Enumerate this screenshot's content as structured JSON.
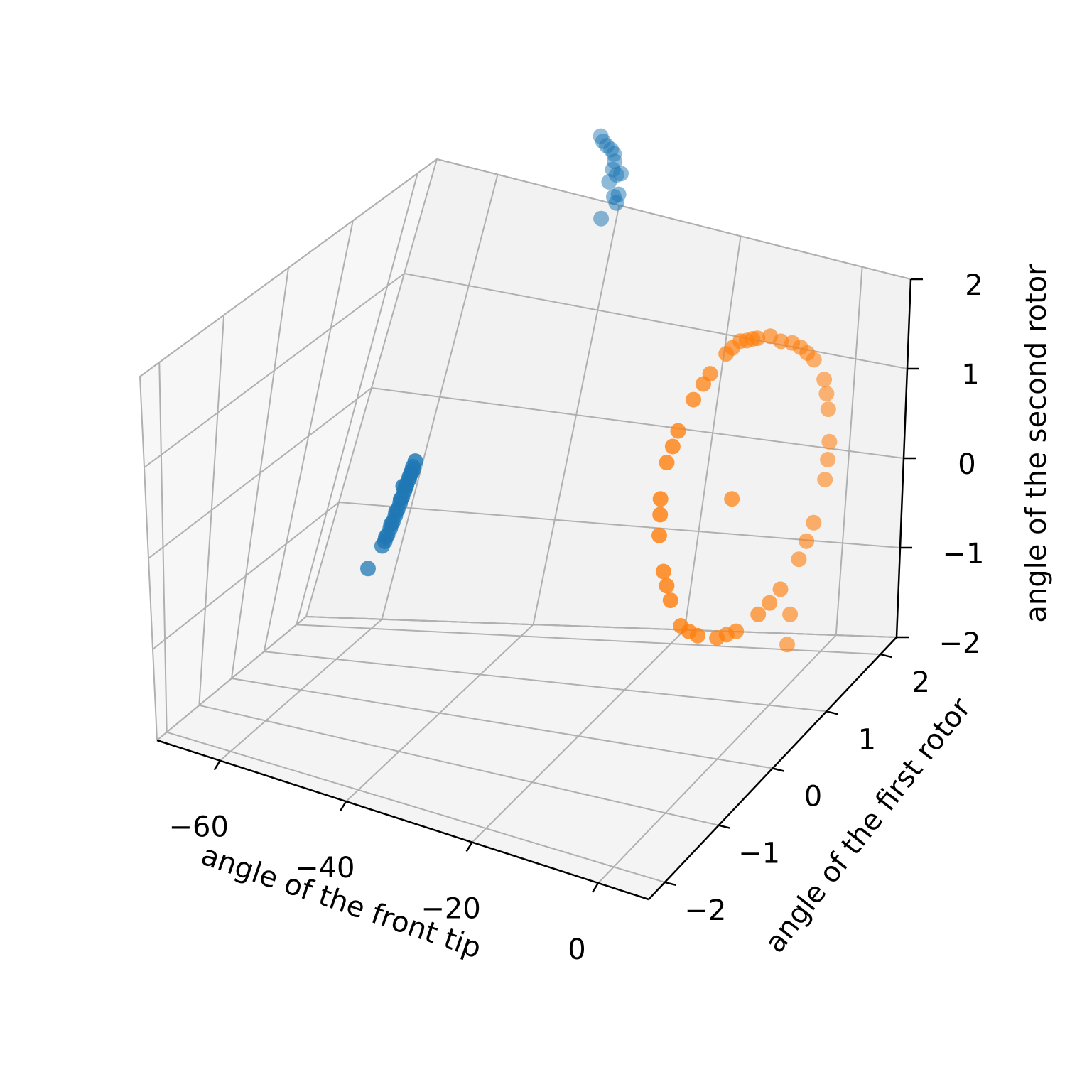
{
  "chart_data": {
    "type": "scatter",
    "projection": "3d",
    "grid": true,
    "legend": "none",
    "x_axis": {
      "label": "angle of the front tip",
      "ticks": [
        -60,
        -40,
        -20,
        0
      ],
      "tick_labels": [
        "−60",
        "−40",
        "−20",
        "0"
      ],
      "range": [
        -70,
        8
      ]
    },
    "y_axis": {
      "label": "angle of the first rotor",
      "ticks": [
        -2,
        -1,
        0,
        1,
        2
      ],
      "tick_labels": [
        "−2",
        "−1",
        "0",
        "1",
        "2"
      ],
      "range": [
        -2.3,
        2.3
      ]
    },
    "z_axis": {
      "label": "angle of the second rotor",
      "ticks": [
        -2,
        -1,
        0,
        1,
        2
      ],
      "tick_labels": [
        "−2",
        "−1",
        "0",
        "1",
        "2"
      ],
      "range": [
        -2,
        2
      ]
    },
    "series": [
      {
        "color": "#1f77b4",
        "points": [
          [
            -47.0,
            2.5,
            2.45
          ],
          [
            -46.0,
            2.45,
            2.44
          ],
          [
            -45.0,
            2.42,
            2.43
          ],
          [
            -44.0,
            2.4,
            2.42
          ],
          [
            -43.2,
            2.38,
            2.4
          ],
          [
            -42.5,
            2.34,
            2.36
          ],
          [
            -42.0,
            2.28,
            2.32
          ],
          [
            -41.0,
            2.25,
            2.3
          ],
          [
            -40.5,
            2.27,
            2.31
          ],
          [
            -41.5,
            2.2,
            2.25
          ],
          [
            -39.0,
            2.05,
            2.22
          ],
          [
            -38.0,
            2.0,
            2.2
          ],
          [
            -38.5,
            2.07,
            2.24
          ],
          [
            -39.5,
            1.95,
            2.05
          ],
          [
            -38.0,
            -1.1,
            1.15
          ],
          [
            -38.8,
            -1.05,
            1.05
          ],
          [
            -39.5,
            -1.0,
            0.95
          ],
          [
            -40.2,
            -0.95,
            0.84
          ],
          [
            -41.0,
            -0.9,
            0.74
          ],
          [
            -41.7,
            -0.85,
            0.64
          ],
          [
            -42.4,
            -0.8,
            0.54
          ],
          [
            -43.1,
            -0.75,
            0.44
          ],
          [
            -43.8,
            -0.7,
            0.34
          ],
          [
            -44.5,
            -0.65,
            0.24
          ],
          [
            -45.2,
            -0.6,
            0.14
          ],
          [
            -45.9,
            -0.55,
            0.04
          ],
          [
            -46.6,
            -0.5,
            -0.06
          ],
          [
            -47.3,
            -0.45,
            -0.16
          ],
          [
            -39.0,
            -1.02,
            1.0
          ],
          [
            -40.0,
            -0.97,
            0.88
          ],
          [
            -41.3,
            -0.88,
            0.7
          ],
          [
            -42.8,
            -0.78,
            0.5
          ],
          [
            -44.2,
            -0.68,
            0.3
          ],
          [
            -45.6,
            -0.58,
            0.1
          ],
          [
            -47.0,
            -0.48,
            -0.1
          ],
          [
            -48.0,
            -0.4,
            -0.24
          ],
          [
            -39.8,
            -1.1,
            0.85
          ],
          [
            -42.0,
            -0.7,
            0.75
          ],
          [
            -50.5,
            -0.3,
            -0.55
          ]
        ]
      },
      {
        "color": "#ff7f0e",
        "points": [
          [
            -3.0,
            0.6,
            2.15
          ],
          [
            -2.6,
            0.33,
            2.18
          ],
          [
            -2.2,
            0.03,
            2.15
          ],
          [
            -1.8,
            -0.28,
            2.06
          ],
          [
            -1.4,
            -0.57,
            1.9
          ],
          [
            -1.0,
            -0.8,
            1.7
          ],
          [
            -0.6,
            -0.95,
            1.4
          ],
          [
            -0.2,
            -1.02,
            1.05
          ],
          [
            0.2,
            -1.0,
            0.65
          ],
          [
            0.6,
            -0.93,
            0.3
          ],
          [
            1.0,
            -0.8,
            -0.05
          ],
          [
            1.4,
            -0.55,
            -0.3
          ],
          [
            1.8,
            -0.25,
            -0.5
          ],
          [
            2.2,
            0.05,
            -0.6
          ],
          [
            2.6,
            0.4,
            -0.62
          ],
          [
            3.0,
            0.75,
            -0.55
          ],
          [
            3.2,
            1.05,
            -0.4
          ],
          [
            3.2,
            1.3,
            -0.15
          ],
          [
            3.0,
            1.5,
            0.2
          ],
          [
            2.6,
            1.6,
            0.55
          ],
          [
            2.2,
            1.6,
            0.9
          ],
          [
            1.8,
            1.55,
            1.25
          ],
          [
            1.4,
            1.4,
            1.55
          ],
          [
            1.0,
            1.2,
            1.8
          ],
          [
            0.2,
            0.95,
            2.0
          ],
          [
            -0.6,
            0.85,
            2.1
          ],
          [
            -1.4,
            0.72,
            2.14
          ],
          [
            -2.2,
            0.62,
            2.16
          ],
          [
            -2.8,
            0.45,
            2.17
          ],
          [
            -2.0,
            -0.1,
            2.12
          ],
          [
            -1.2,
            -0.68,
            1.8
          ],
          [
            -0.4,
            -0.98,
            1.25
          ],
          [
            0.4,
            -0.97,
            0.48
          ],
          [
            1.2,
            -0.68,
            -0.18
          ],
          [
            2.0,
            -0.1,
            -0.55
          ],
          [
            2.8,
            0.58,
            -0.6
          ],
          [
            3.2,
            1.18,
            -0.28
          ],
          [
            2.8,
            1.56,
            0.38
          ],
          [
            2.0,
            1.58,
            1.08
          ],
          [
            1.2,
            1.3,
            1.68
          ],
          [
            0.6,
            1.1,
            1.9
          ],
          [
            -1.8,
            0.68,
            2.15
          ],
          [
            0.9,
            0.1,
            0.8
          ],
          [
            1.8,
            1.1,
            -1.05
          ],
          [
            1.9,
            1.05,
            -1.35
          ]
        ]
      }
    ]
  }
}
